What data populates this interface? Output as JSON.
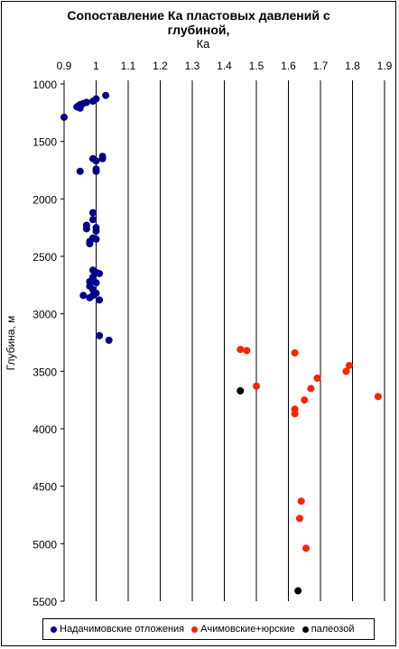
{
  "chart_data": {
    "type": "scatter",
    "title": "Сопоставление Ка пластовых давлений с глубиной,",
    "xlabel": "Ка",
    "ylabel": "Глубина, м",
    "xlim": [
      0.9,
      1.9
    ],
    "ylim": [
      1000,
      5500
    ],
    "y_inverted": true,
    "x_axis_position": "top",
    "grid": "vertical",
    "x_ticks": [
      "0.9",
      "1",
      "1.1",
      "1.2",
      "1.3",
      "1.4",
      "1.5",
      "1.6",
      "1.7",
      "1.8",
      "1.9"
    ],
    "y_ticks": [
      "1000",
      "1500",
      "2000",
      "2500",
      "3000",
      "3500",
      "4000",
      "4500",
      "5000",
      "5500"
    ],
    "legend_position": "bottom",
    "series": [
      {
        "name": "Надачимовские отложения",
        "color": "#00008B",
        "points": [
          [
            1.03,
            1100
          ],
          [
            1.0,
            1130
          ],
          [
            0.99,
            1150
          ],
          [
            0.97,
            1160
          ],
          [
            0.96,
            1170
          ],
          [
            0.95,
            1180
          ],
          [
            0.945,
            1190
          ],
          [
            0.94,
            1200
          ],
          [
            0.95,
            1210
          ],
          [
            0.9,
            1290
          ],
          [
            1.02,
            1630
          ],
          [
            1.02,
            1650
          ],
          [
            0.99,
            1650
          ],
          [
            1.0,
            1670
          ],
          [
            1.0,
            1740
          ],
          [
            1.0,
            1760
          ],
          [
            0.95,
            1760
          ],
          [
            0.99,
            2120
          ],
          [
            0.99,
            2180
          ],
          [
            0.97,
            2230
          ],
          [
            0.97,
            2260
          ],
          [
            1.0,
            2250
          ],
          [
            1.0,
            2280
          ],
          [
            0.99,
            2340
          ],
          [
            1.0,
            2350
          ],
          [
            0.98,
            2370
          ],
          [
            0.98,
            2390
          ],
          [
            0.99,
            2620
          ],
          [
            1.0,
            2640
          ],
          [
            1.01,
            2650
          ],
          [
            0.99,
            2680
          ],
          [
            0.98,
            2720
          ],
          [
            1.0,
            2730
          ],
          [
            0.98,
            2760
          ],
          [
            0.99,
            2790
          ],
          [
            1.0,
            2820
          ],
          [
            0.99,
            2840
          ],
          [
            0.96,
            2840
          ],
          [
            0.98,
            2860
          ],
          [
            1.01,
            2880
          ],
          [
            1.01,
            3190
          ],
          [
            1.04,
            3230
          ]
        ]
      },
      {
        "name": "Ачимовские+юрские",
        "color": "#FF2200",
        "points": [
          [
            1.45,
            3310
          ],
          [
            1.47,
            3320
          ],
          [
            1.62,
            3340
          ],
          [
            1.79,
            3450
          ],
          [
            1.78,
            3500
          ],
          [
            1.69,
            3560
          ],
          [
            1.5,
            3630
          ],
          [
            1.67,
            3650
          ],
          [
            1.45,
            3670
          ],
          [
            1.88,
            3720
          ],
          [
            1.65,
            3750
          ],
          [
            1.62,
            3830
          ],
          [
            1.62,
            3870
          ],
          [
            1.64,
            4630
          ],
          [
            1.635,
            4780
          ],
          [
            1.655,
            5040
          ]
        ]
      },
      {
        "name": "палеозой",
        "color": "#000000",
        "points": [
          [
            1.45,
            3670
          ],
          [
            1.63,
            5410
          ]
        ]
      }
    ]
  },
  "legend": {
    "items": [
      {
        "label": "Надачимовские отложения",
        "color": "#00008B"
      },
      {
        "label": "Ачимовские+юрские",
        "color": "#FF2200"
      },
      {
        "label": "палеозой",
        "color": "#000000"
      }
    ]
  }
}
